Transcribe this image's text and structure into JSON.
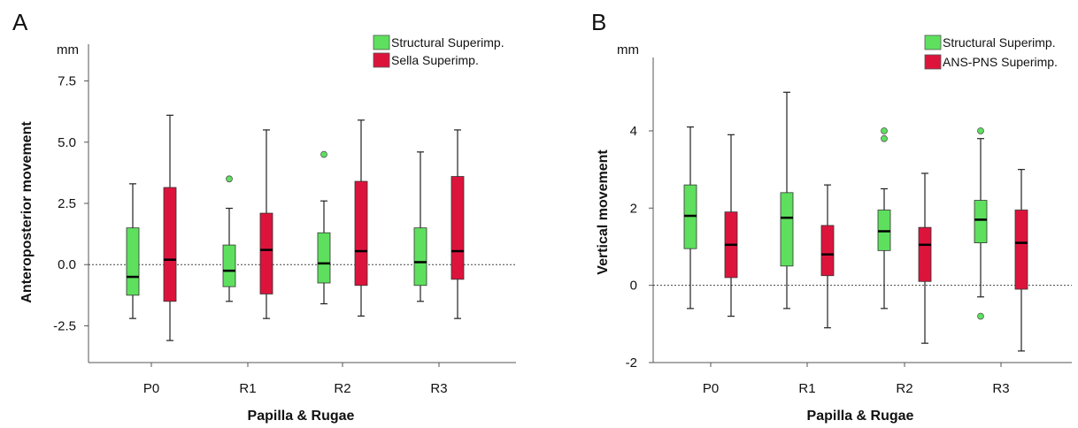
{
  "chart_data": [
    {
      "type": "box",
      "panel_label": "A",
      "unit": "mm",
      "xlabel": "Papilla & Rugae",
      "ylabel": "Anteroposterior movement",
      "categories": [
        "P0",
        "R1",
        "R2",
        "R3"
      ],
      "ylim": [
        -4.0,
        9.0
      ],
      "yticks": [
        -2.5,
        0.0,
        2.5,
        5.0,
        7.5
      ],
      "ytick_labels": [
        "-2.5",
        "0.0",
        "2.5",
        "5.0",
        "7.5"
      ],
      "reference_line": 0,
      "legend_position": "top-right",
      "series": [
        {
          "name": "Structural Superimp.",
          "color": "#5ee05e",
          "boxes": [
            {
              "min": -2.2,
              "q1": -1.25,
              "median": -0.5,
              "q3": 1.5,
              "max": 3.3,
              "outliers": []
            },
            {
              "min": -1.5,
              "q1": -0.9,
              "median": -0.25,
              "q3": 0.8,
              "max": 2.3,
              "outliers": [
                3.5
              ]
            },
            {
              "min": -1.6,
              "q1": -0.75,
              "median": 0.05,
              "q3": 1.3,
              "max": 2.6,
              "outliers": [
                4.5
              ]
            },
            {
              "min": -1.5,
              "q1": -0.85,
              "median": 0.1,
              "q3": 1.5,
              "max": 4.6,
              "outliers": []
            }
          ]
        },
        {
          "name": "Sella Superimp.",
          "color": "#dc143c",
          "boxes": [
            {
              "min": -3.1,
              "q1": -1.5,
              "median": 0.2,
              "q3": 3.15,
              "max": 6.1,
              "outliers": []
            },
            {
              "min": -2.2,
              "q1": -1.2,
              "median": 0.6,
              "q3": 2.1,
              "max": 5.5,
              "outliers": []
            },
            {
              "min": -2.1,
              "q1": -0.85,
              "median": 0.55,
              "q3": 3.4,
              "max": 5.9,
              "outliers": []
            },
            {
              "min": -2.2,
              "q1": -0.6,
              "median": 0.55,
              "q3": 3.6,
              "max": 5.5,
              "outliers": []
            }
          ]
        }
      ]
    },
    {
      "type": "box",
      "panel_label": "B",
      "unit": "mm",
      "xlabel": "Papilla & Rugae",
      "ylabel": "Vertical movement",
      "categories": [
        "P0",
        "R1",
        "R2",
        "R3"
      ],
      "ylim": [
        -2.0,
        5.9
      ],
      "yticks": [
        -2,
        0,
        2,
        4
      ],
      "ytick_labels": [
        "-2",
        "0",
        "2",
        "4"
      ],
      "reference_line": 0,
      "legend_position": "top-right",
      "series": [
        {
          "name": "Structural Superimp.",
          "color": "#5ee05e",
          "boxes": [
            {
              "min": -0.6,
              "q1": 0.95,
              "median": 1.8,
              "q3": 2.6,
              "max": 4.1,
              "outliers": []
            },
            {
              "min": -0.6,
              "q1": 0.5,
              "median": 1.75,
              "q3": 2.4,
              "max": 5.0,
              "outliers": []
            },
            {
              "min": -0.6,
              "q1": 0.9,
              "median": 1.4,
              "q3": 1.95,
              "max": 2.5,
              "outliers": [
                3.8,
                4.0
              ]
            },
            {
              "min": -0.3,
              "q1": 1.1,
              "median": 1.7,
              "q3": 2.2,
              "max": 3.8,
              "outliers": [
                4.0,
                -0.8
              ]
            }
          ]
        },
        {
          "name": "ANS-PNS Superimp.",
          "color": "#dc143c",
          "boxes": [
            {
              "min": -0.8,
              "q1": 0.2,
              "median": 1.05,
              "q3": 1.9,
              "max": 3.9,
              "outliers": []
            },
            {
              "min": -1.1,
              "q1": 0.25,
              "median": 0.8,
              "q3": 1.55,
              "max": 2.6,
              "outliers": []
            },
            {
              "min": -1.5,
              "q1": 0.1,
              "median": 1.05,
              "q3": 1.5,
              "max": 2.9,
              "outliers": []
            },
            {
              "min": -1.7,
              "q1": -0.1,
              "median": 1.1,
              "q3": 1.95,
              "max": 3.0,
              "outliers": []
            }
          ]
        }
      ]
    }
  ]
}
